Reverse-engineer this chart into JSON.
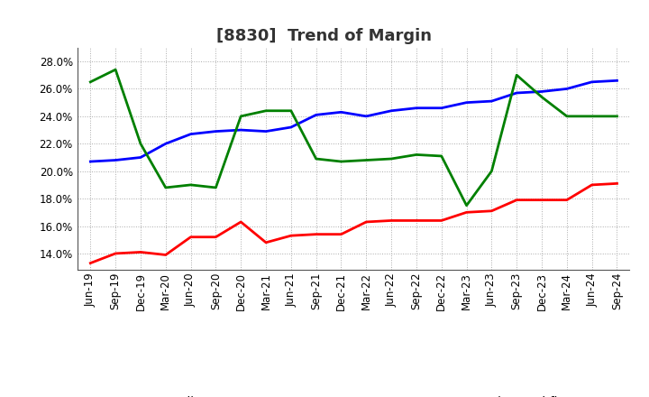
{
  "title": "[8830]  Trend of Margin",
  "ylim": [
    0.128,
    0.29
  ],
  "yticks": [
    0.14,
    0.16,
    0.18,
    0.2,
    0.22,
    0.24,
    0.26,
    0.28
  ],
  "x_labels": [
    "Jun-19",
    "Sep-19",
    "Dec-19",
    "Mar-20",
    "Jun-20",
    "Sep-20",
    "Dec-20",
    "Mar-21",
    "Jun-21",
    "Sep-21",
    "Dec-21",
    "Mar-22",
    "Jun-22",
    "Sep-22",
    "Dec-22",
    "Mar-23",
    "Jun-23",
    "Sep-23",
    "Dec-23",
    "Mar-24",
    "Jun-24",
    "Sep-24"
  ],
  "ordinary_income": [
    0.207,
    0.208,
    0.21,
    0.22,
    0.227,
    0.229,
    0.23,
    0.229,
    0.232,
    0.241,
    0.243,
    0.24,
    0.244,
    0.246,
    0.246,
    0.25,
    0.251,
    0.257,
    0.258,
    0.26,
    0.265,
    0.266
  ],
  "net_income": [
    0.133,
    0.14,
    0.141,
    0.139,
    0.152,
    0.152,
    0.163,
    0.148,
    0.153,
    0.154,
    0.154,
    0.163,
    0.164,
    0.164,
    0.164,
    0.17,
    0.171,
    0.179,
    0.179,
    0.179,
    0.19,
    0.191
  ],
  "operating_cashflow": [
    0.265,
    0.274,
    0.22,
    0.188,
    0.19,
    0.188,
    0.24,
    0.244,
    0.244,
    0.209,
    0.207,
    0.208,
    0.209,
    0.212,
    0.211,
    0.175,
    0.2,
    0.27,
    0.254,
    0.24,
    0.24,
    0.24
  ],
  "color_ordinary": "#0000FF",
  "color_net": "#FF0000",
  "color_cashflow": "#008000",
  "bg_color": "#FFFFFF",
  "grid_color": "#AAAAAA",
  "title_fontsize": 13,
  "title_color": "#333333",
  "tick_fontsize": 8.5,
  "legend_fontsize": 9.5,
  "linewidth": 2.0
}
